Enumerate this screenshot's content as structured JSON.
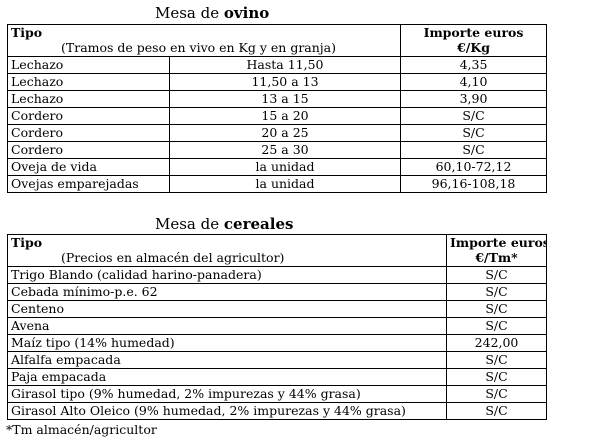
{
  "ovino": {
    "heading_prefix": "Mesa de ",
    "heading_bold": "ovino",
    "header": {
      "tipo": "Tipo",
      "subtitle": "(Tramos de peso en vivo en Kg y en granja)",
      "importe_line1": "Importe euros",
      "importe_line2": "€/Kg"
    },
    "rows": [
      {
        "tipo": "Lechazo",
        "tramo": "Hasta 11,50",
        "importe": "4,35"
      },
      {
        "tipo": "Lechazo",
        "tramo": "11,50 a 13",
        "importe": "4,10"
      },
      {
        "tipo": "Lechazo",
        "tramo": "13 a 15",
        "importe": "3,90"
      },
      {
        "tipo": "Cordero",
        "tramo": "15 a 20",
        "importe": "S/C"
      },
      {
        "tipo": "Cordero",
        "tramo": "20 a 25",
        "importe": "S/C"
      },
      {
        "tipo": "Cordero",
        "tramo": "25 a 30",
        "importe": "S/C"
      },
      {
        "tipo": "Oveja de vida",
        "tramo": "la unidad",
        "importe": "60,10-72,12"
      },
      {
        "tipo": "Ovejas emparejadas",
        "tramo": "la unidad",
        "importe": "96,16-108,18"
      }
    ]
  },
  "cereales": {
    "heading_prefix": "Mesa de ",
    "heading_bold": "cereales",
    "header": {
      "tipo": "Tipo",
      "subtitle": "(Precios en almacén del agricultor)",
      "importe_line1": "Importe euros",
      "importe_line2": "€/Tm*"
    },
    "rows": [
      {
        "tipo": "Trigo Blando (calidad harino-panadera)",
        "importe": "S/C"
      },
      {
        "tipo": "Cebada mínimo-p.e. 62",
        "importe": "S/C"
      },
      {
        "tipo": "Centeno",
        "importe": "S/C"
      },
      {
        "tipo": "Avena",
        "importe": "S/C"
      },
      {
        "tipo": "Maíz tipo (14% humedad)",
        "importe": "242,00"
      },
      {
        "tipo": "Alfalfa empacada",
        "importe": "S/C"
      },
      {
        "tipo": "Paja empacada",
        "importe": "S/C"
      },
      {
        "tipo": "Girasol tipo (9% humedad, 2% impurezas y 44% grasa)",
        "importe": "S/C"
      },
      {
        "tipo": "Girasol Alto Oleico (9% humedad, 2% impurezas y 44% grasa)",
        "importe": "S/C"
      }
    ]
  },
  "footnote": "*Tm almacén/agricultor"
}
